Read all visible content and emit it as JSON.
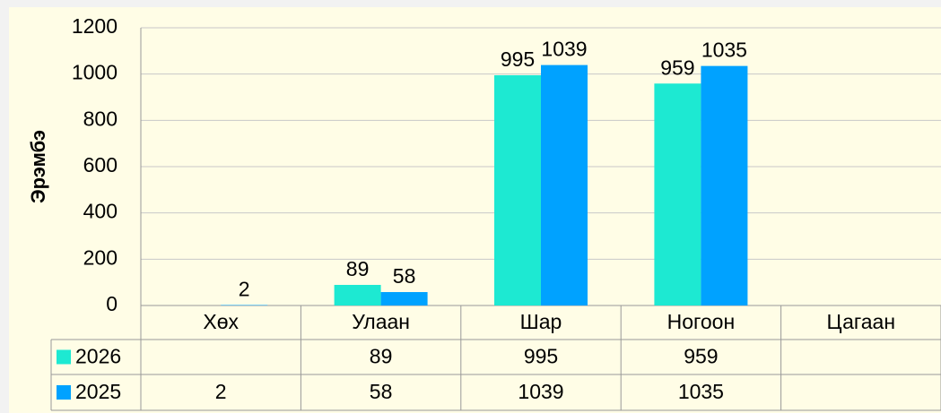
{
  "chart_data": {
    "type": "bar",
    "y_axis_label": "Эрэмбэ",
    "categories": [
      "Хөх",
      "Улаан",
      "Шар",
      "Ногоон",
      "Цагаан"
    ],
    "series": [
      {
        "name": "2026",
        "color": "#1de9d2",
        "values": [
          null,
          89,
          995,
          959,
          null
        ]
      },
      {
        "name": "2025",
        "color": "#00a2ff",
        "values": [
          2,
          58,
          1039,
          1035,
          null
        ]
      }
    ],
    "ylim": [
      0,
      1200
    ],
    "yticks": [
      0,
      200,
      400,
      600,
      800,
      1000,
      1200
    ],
    "grid": true,
    "data_table": true
  }
}
